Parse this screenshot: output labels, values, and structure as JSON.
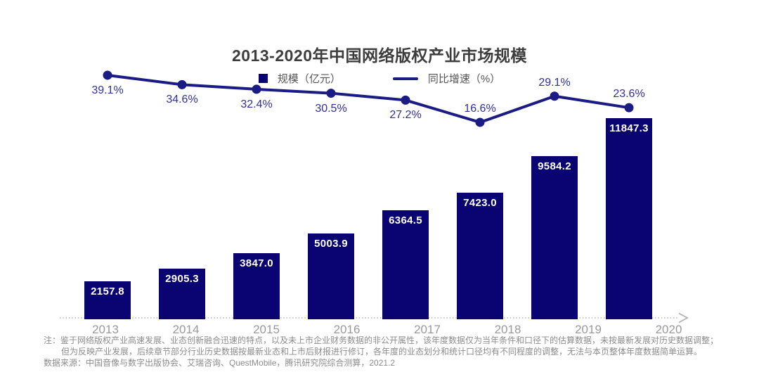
{
  "title": "2013-2020年中国网络版权产业市场规模",
  "legend": {
    "bar_label": "规模（亿元）",
    "line_label": "同比增速（%）"
  },
  "chart_data": {
    "type": "bar+line",
    "title": "2013-2020年中国网络版权产业市场规模",
    "categories": [
      "2013",
      "2014",
      "2015",
      "2016",
      "2017",
      "2018",
      "2019",
      "2020"
    ],
    "series": [
      {
        "name": "规模（亿元）",
        "type": "bar",
        "values": [
          2157.8,
          2905.3,
          3847.0,
          5003.9,
          6364.5,
          7423.0,
          9584.2,
          11847.3
        ],
        "value_labels": [
          "2157.8",
          "2905.3",
          "3847.0",
          "5003.9",
          "6364.5",
          "7423.0",
          "9584.2",
          "11847.3"
        ],
        "label_position": "inside-top"
      },
      {
        "name": "同比增速（%）",
        "type": "line",
        "values": [
          39.1,
          34.6,
          32.4,
          30.5,
          27.2,
          16.6,
          29.1,
          23.6
        ],
        "value_labels": [
          "39.1%",
          "34.6%",
          "32.4%",
          "30.5%",
          "27.2%",
          "16.6%",
          "29.1%",
          "23.6%"
        ],
        "label_positions": [
          "below",
          "below",
          "below",
          "below",
          "below",
          "above",
          "above",
          "above"
        ]
      }
    ],
    "legend_position": "top",
    "x_axis": {
      "style": "dotted-arrow",
      "gridlines": false
    },
    "y_axis": {
      "visible": false
    }
  },
  "colors": {
    "bar": "#0a0473",
    "line": "#1b1b85",
    "growth_label": "#30309a",
    "bar_value": "#ffffff",
    "title": "#3d3d3d",
    "legend_text": "#555555",
    "year_label": "#999999",
    "axis": "#b3b3b3",
    "note": "#8c8c8c"
  },
  "notes": {
    "line1": "注：鉴于网络版权产业高速发展、业态创新融合迅速的特点，以及未上市企业财务数据的非公开属性，该年度数据仅为当年条件和口径下的估算数据，未按最新发展对历史数据调整；",
    "line2": "但为反映产业发展，后续章节部分行业历史数据按最新业态和上市后财报进行修订，各年度的业态划分和统计口径均有不同程度的调整，无法与本页整体年度数据简单运算。",
    "source": "数据来源：中国音像与数字出版协会、艾瑞咨询、QuestMobile，腾讯研究院综合测算，2021.2"
  }
}
